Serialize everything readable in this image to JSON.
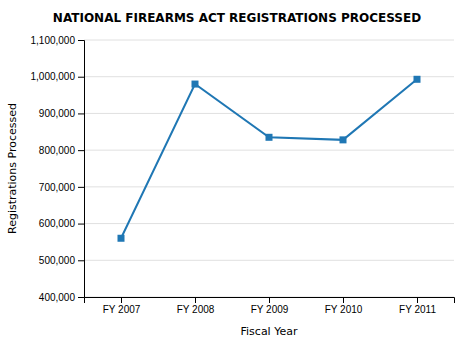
{
  "chart_data": {
    "type": "line",
    "title": "NATIONAL FIREARMS ACT REGISTRATIONS PROCESSED",
    "xlabel": "Fiscal Year",
    "ylabel": "Registrations Processed",
    "categories": [
      "FY 2007",
      "FY 2008",
      "FY 2009",
      "FY 2010",
      "FY 2011"
    ],
    "values": [
      560000,
      980000,
      835000,
      828000,
      993000
    ],
    "ylim": [
      400000,
      1100000
    ],
    "yticks": [
      {
        "value": 400000,
        "label": "400,000"
      },
      {
        "value": 500000,
        "label": "500,000"
      },
      {
        "value": 600000,
        "label": "600,000"
      },
      {
        "value": 700000,
        "label": "700,000"
      },
      {
        "value": 800000,
        "label": "800,000"
      },
      {
        "value": 900000,
        "label": "900,000"
      },
      {
        "value": 1000000,
        "label": "1,000,000"
      },
      {
        "value": 1100000,
        "label": "1,100,000"
      }
    ],
    "marker": "square",
    "grid": true
  }
}
